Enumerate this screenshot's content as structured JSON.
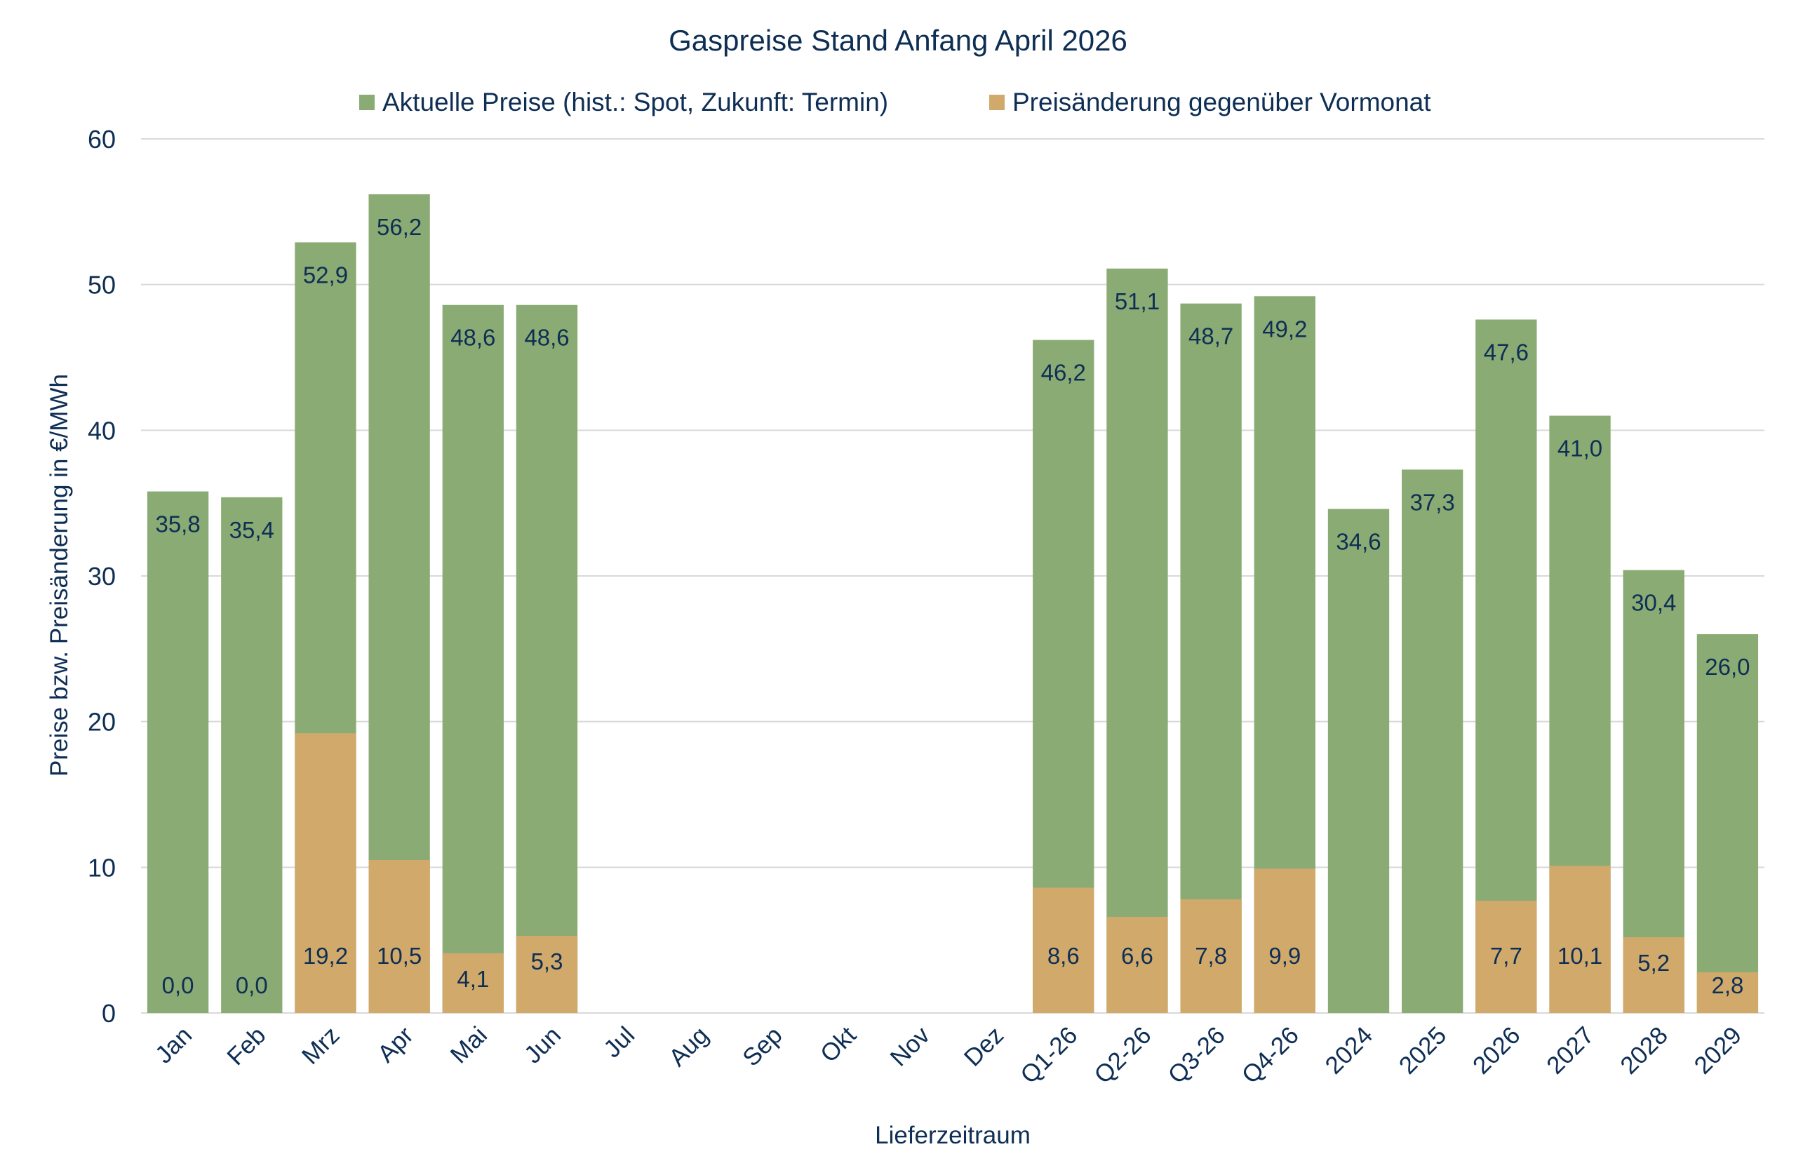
{
  "chart_data": {
    "type": "bar",
    "title": "Gaspreise Stand Anfang April 2026",
    "xlabel": "Lieferzeitraum",
    "ylabel": "Preise bzw. Preisänderung in €/MWh",
    "ylim": [
      0,
      60
    ],
    "yticks": [
      0,
      10,
      20,
      30,
      40,
      50,
      60
    ],
    "grid": true,
    "legend_position": "top",
    "categories": [
      "Jan",
      "Feb",
      "Mrz",
      "Apr",
      "Mai",
      "Jun",
      "Jul",
      "Aug",
      "Sep",
      "Okt",
      "Nov",
      "Dez",
      "Q1-26",
      "Q2-26",
      "Q3-26",
      "Q4-26",
      "2024",
      "2025",
      "2026",
      "2027",
      "2028",
      "2029"
    ],
    "series": [
      {
        "name": "Aktuelle Preise (hist.: Spot, Zukunft: Termin)",
        "color": "#8aab74",
        "values": [
          35.8,
          35.4,
          52.9,
          56.2,
          48.6,
          48.6,
          null,
          null,
          null,
          null,
          null,
          null,
          46.2,
          51.1,
          48.7,
          49.2,
          34.6,
          37.3,
          47.6,
          41.0,
          30.4,
          26.0
        ]
      },
      {
        "name": "Preisänderung gegenüber Vormonat",
        "color": "#d1a96b",
        "values": [
          0.0,
          0.0,
          19.2,
          10.5,
          4.1,
          5.3,
          null,
          null,
          null,
          null,
          null,
          null,
          8.6,
          6.6,
          7.8,
          9.9,
          null,
          null,
          7.7,
          10.1,
          5.2,
          2.8
        ]
      }
    ]
  }
}
